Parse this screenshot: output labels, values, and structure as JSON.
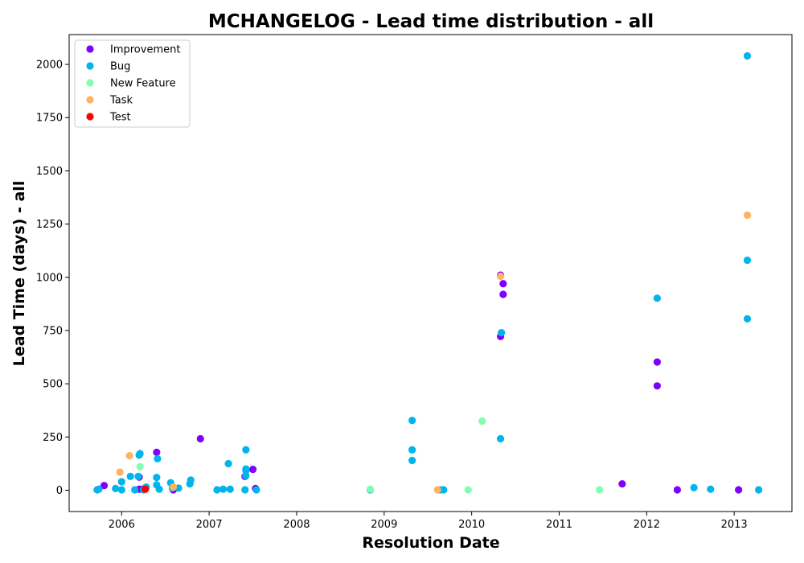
{
  "chart_data": {
    "type": "scatter",
    "title": "MCHANGELOG - Lead time distribution - all",
    "xlabel": "Resolution Date",
    "ylabel": "Lead Time (days) - all",
    "xlim": [
      2005.4,
      2013.66
    ],
    "ylim": [
      -100,
      2140
    ],
    "x_ticks": [
      2006,
      2007,
      2008,
      2009,
      2010,
      2011,
      2012,
      2013
    ],
    "x_tick_labels": [
      "2006",
      "2007",
      "2008",
      "2009",
      "2010",
      "2011",
      "2012",
      "2013"
    ],
    "y_ticks": [
      0,
      250,
      500,
      750,
      1000,
      1250,
      1500,
      1750,
      2000
    ],
    "y_tick_labels": [
      "0",
      "250",
      "500",
      "750",
      "1000",
      "1250",
      "1500",
      "1750",
      "2000"
    ],
    "grid": false,
    "legend_position": "top-left",
    "series": [
      {
        "name": "Improvement",
        "color": "#8000ff",
        "points": [
          [
            2005.8,
            22
          ],
          [
            2006.2,
            62
          ],
          [
            2006.2,
            5
          ],
          [
            2006.24,
            5
          ],
          [
            2006.4,
            178
          ],
          [
            2006.59,
            2
          ],
          [
            2006.9,
            242
          ],
          [
            2007.41,
            65
          ],
          [
            2007.5,
            98
          ],
          [
            2007.53,
            8
          ],
          [
            2010.33,
            1010
          ],
          [
            2010.36,
            970
          ],
          [
            2010.36,
            920
          ],
          [
            2010.33,
            722
          ],
          [
            2011.72,
            30
          ],
          [
            2012.12,
            602
          ],
          [
            2012.12,
            490
          ],
          [
            2012.35,
            2
          ],
          [
            2013.05,
            2
          ]
        ]
      },
      {
        "name": "Bug",
        "color": "#00b5eb",
        "points": [
          [
            2005.72,
            2
          ],
          [
            2005.74,
            5
          ],
          [
            2005.93,
            8
          ],
          [
            2006.0,
            2
          ],
          [
            2006.0,
            40
          ],
          [
            2006.1,
            65
          ],
          [
            2006.15,
            2
          ],
          [
            2006.2,
            165
          ],
          [
            2006.21,
            172
          ],
          [
            2006.19,
            65
          ],
          [
            2006.25,
            2
          ],
          [
            2006.28,
            15
          ],
          [
            2006.4,
            60
          ],
          [
            2006.4,
            25
          ],
          [
            2006.41,
            148
          ],
          [
            2006.43,
            5
          ],
          [
            2006.56,
            35
          ],
          [
            2006.58,
            10
          ],
          [
            2006.65,
            10
          ],
          [
            2006.78,
            30
          ],
          [
            2006.79,
            48
          ],
          [
            2007.09,
            2
          ],
          [
            2007.16,
            5
          ],
          [
            2007.22,
            125
          ],
          [
            2007.24,
            5
          ],
          [
            2007.41,
            2
          ],
          [
            2007.42,
            92
          ],
          [
            2007.42,
            100
          ],
          [
            2007.42,
            190
          ],
          [
            2007.42,
            68
          ],
          [
            2007.54,
            2
          ],
          [
            2008.84,
            2
          ],
          [
            2009.32,
            328
          ],
          [
            2009.32,
            190
          ],
          [
            2009.32,
            140
          ],
          [
            2009.64,
            2
          ],
          [
            2009.68,
            2
          ],
          [
            2010.34,
            740
          ],
          [
            2010.33,
            242
          ],
          [
            2012.12,
            902
          ],
          [
            2012.54,
            12
          ],
          [
            2012.73,
            5
          ],
          [
            2013.15,
            2040
          ],
          [
            2013.15,
            1080
          ],
          [
            2013.15,
            805
          ],
          [
            2013.28,
            2
          ]
        ]
      },
      {
        "name": "New Feature",
        "color": "#80ffb4",
        "points": [
          [
            2006.21,
            110
          ],
          [
            2008.84,
            5
          ],
          [
            2009.96,
            2
          ],
          [
            2010.12,
            325
          ],
          [
            2011.46,
            2
          ]
        ]
      },
      {
        "name": "Task",
        "color": "#ffb360",
        "points": [
          [
            2005.98,
            85
          ],
          [
            2006.09,
            162
          ],
          [
            2006.59,
            15
          ],
          [
            2009.61,
            2
          ],
          [
            2010.33,
            1005
          ],
          [
            2013.15,
            1292
          ]
        ]
      },
      {
        "name": "Test",
        "color": "#ff0000",
        "points": [
          [
            2006.27,
            5
          ]
        ]
      }
    ]
  }
}
